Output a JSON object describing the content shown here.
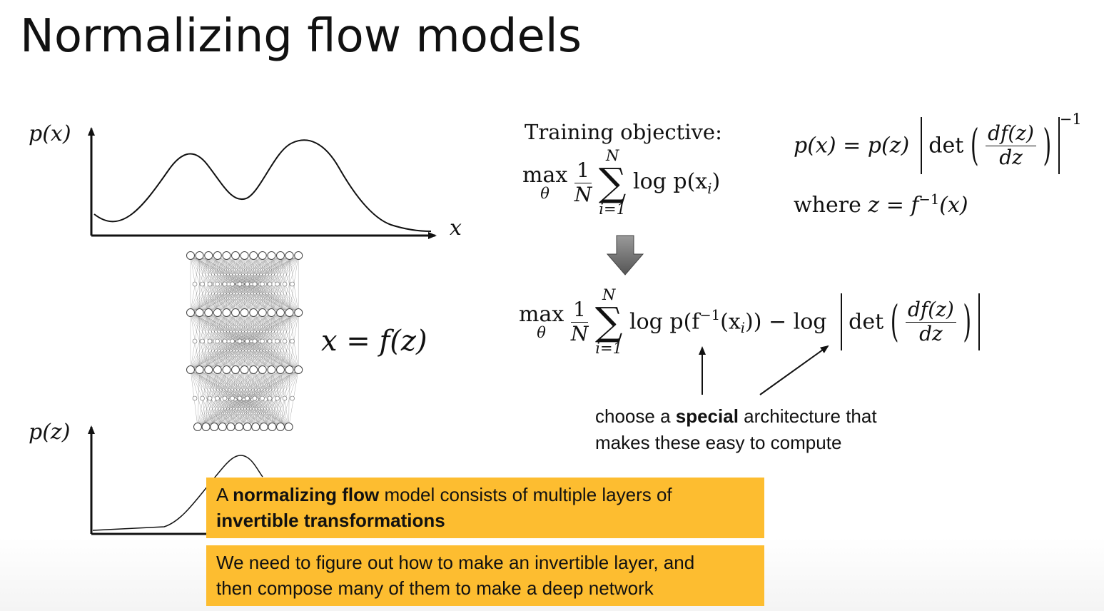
{
  "slide": {
    "title": "Normalizing flow models"
  },
  "left": {
    "px_label": "p(x)",
    "x_label": "x",
    "pz_label": "p(z)",
    "mapping": "x = f(z)"
  },
  "objective": {
    "label": "Training objective:",
    "max": "max",
    "theta": "θ",
    "one": "1",
    "N": "N",
    "sum_upper": "N",
    "sum_lower": "i=1",
    "sigma": "∑",
    "term": "log p(x",
    "term_sub": "i",
    "term_close": ")"
  },
  "change_of_vars": {
    "lhs": "p(x) = p(z)",
    "det": "det",
    "num": "df(z)",
    "den": "dz",
    "power": "−1",
    "where": "where",
    "where_expr": "z = f",
    "where_sup": "−1",
    "where_arg": "(x)"
  },
  "rewritten": {
    "max": "max",
    "theta": "θ",
    "one": "1",
    "N": "N",
    "sum_upper": "N",
    "sum_lower": "i=1",
    "sigma": "∑",
    "term1": "log p(f",
    "term1_sup": "−1",
    "term1_arg": "(x",
    "term1_sub": "i",
    "term1_close": "))",
    "minus_log": " − log ",
    "det": "det",
    "num": "df(z)",
    "den": "dz"
  },
  "callout": {
    "line1_pre": "choose a ",
    "line1_bold": "special",
    "line1_post": " architecture that",
    "line2": "makes these easy to compute"
  },
  "box1": {
    "pre": "A ",
    "bold1": "normalizing flow",
    "mid": " model consists of multiple layers of",
    "bold2": "invertible transformations"
  },
  "box2": {
    "line1": "We need to figure out how to make an invertible layer, and",
    "line2": "then compose many of them to make a deep network"
  },
  "colors": {
    "box_fill": "#fdbd30",
    "arrow_fill": "#777777"
  }
}
